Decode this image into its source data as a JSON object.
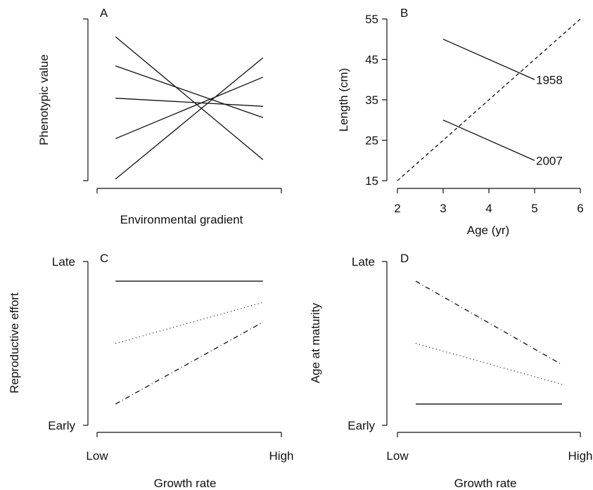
{
  "chart_data": [
    {
      "panel": "A",
      "type": "line",
      "xlabel": "Environmental gradient",
      "ylabel": "Phenotypic value",
      "xlim": [
        0,
        1
      ],
      "ylim": [
        0,
        1
      ],
      "xticks": [],
      "yticks": [],
      "series": [
        {
          "x": [
            0.1,
            0.9
          ],
          "y": [
            0.89,
            0.13
          ],
          "style": "solid"
        },
        {
          "x": [
            0.1,
            0.9
          ],
          "y": [
            0.71,
            0.39
          ],
          "style": "solid"
        },
        {
          "x": [
            0.1,
            0.9
          ],
          "y": [
            0.51,
            0.46
          ],
          "style": "solid"
        },
        {
          "x": [
            0.1,
            0.9
          ],
          "y": [
            0.26,
            0.64
          ],
          "style": "solid"
        },
        {
          "x": [
            0.1,
            0.9
          ],
          "y": [
            0.01,
            0.76
          ],
          "style": "solid"
        }
      ]
    },
    {
      "panel": "B",
      "type": "line",
      "xlabel": "Age (yr)",
      "ylabel": "Length (cm)",
      "xlim": [
        2,
        6
      ],
      "ylim": [
        15,
        55
      ],
      "xticks": [
        "2",
        "3",
        "4",
        "5",
        "6"
      ],
      "yticks": [
        "15",
        "25",
        "35",
        "45",
        "55"
      ],
      "series": [
        {
          "x": [
            3,
            5
          ],
          "y": [
            50,
            40
          ],
          "style": "solid",
          "end_label": "1958"
        },
        {
          "x": [
            3,
            5
          ],
          "y": [
            30,
            20
          ],
          "style": "solid",
          "end_label": "2007"
        },
        {
          "x": [
            2,
            6
          ],
          "y": [
            15,
            55
          ],
          "style": "dashed"
        }
      ]
    },
    {
      "panel": "C",
      "type": "line",
      "xlabel": "Growth rate",
      "ylabel": "Reproductive effort",
      "xlim": [
        0,
        1
      ],
      "ylim": [
        0,
        1
      ],
      "xticks": [
        "Low",
        "High"
      ],
      "yticks": [
        "Early",
        "Late"
      ],
      "series": [
        {
          "x": [
            0.1,
            0.9
          ],
          "y": [
            0.88,
            0.88
          ],
          "style": "solid"
        },
        {
          "x": [
            0.1,
            0.9
          ],
          "y": [
            0.5,
            0.75
          ],
          "style": "dotted"
        },
        {
          "x": [
            0.1,
            0.9
          ],
          "y": [
            0.13,
            0.63
          ],
          "style": "dashdot"
        }
      ]
    },
    {
      "panel": "D",
      "type": "line",
      "xlabel": "Growth rate",
      "ylabel": "Age at maturity",
      "xlim": [
        0,
        1
      ],
      "ylim": [
        0,
        1
      ],
      "xticks": [
        "Low",
        "High"
      ],
      "yticks": [
        "Early",
        "Late"
      ],
      "series": [
        {
          "x": [
            0.1,
            0.9
          ],
          "y": [
            0.88,
            0.37
          ],
          "style": "dashdot"
        },
        {
          "x": [
            0.1,
            0.9
          ],
          "y": [
            0.5,
            0.25
          ],
          "style": "dotted"
        },
        {
          "x": [
            0.1,
            0.9
          ],
          "y": [
            0.13,
            0.13
          ],
          "style": "solid"
        }
      ]
    }
  ]
}
